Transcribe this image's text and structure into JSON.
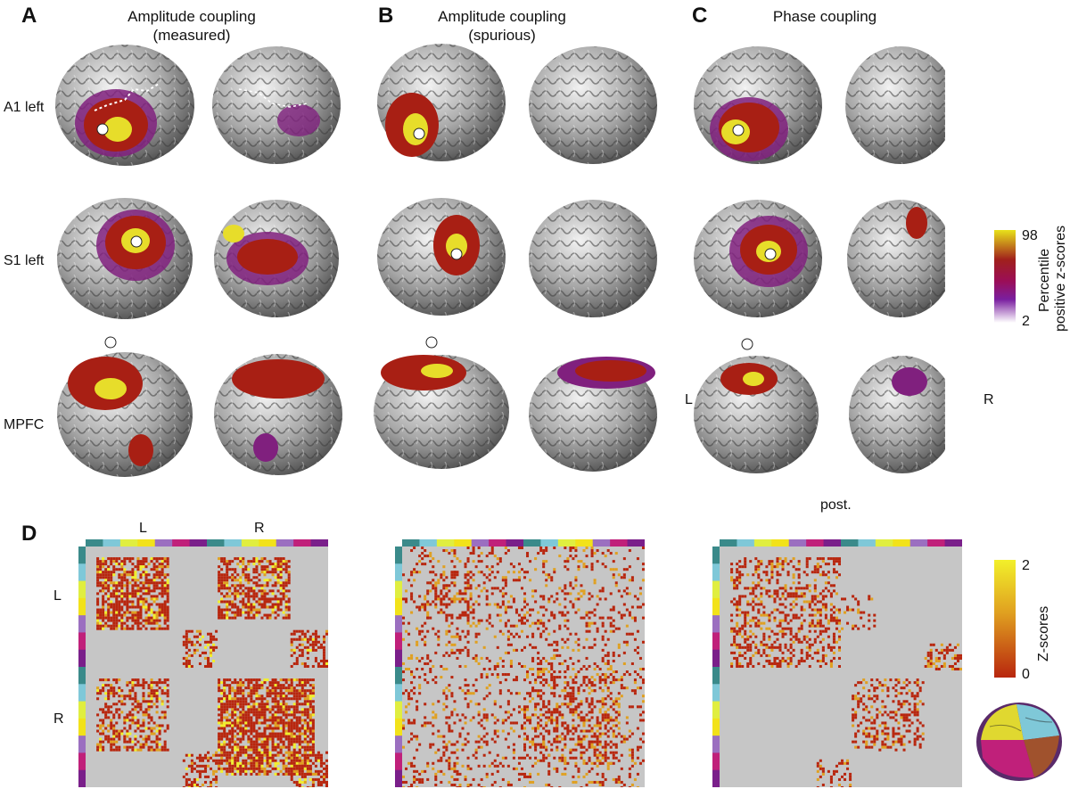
{
  "panels": {
    "A": {
      "letter": "A",
      "title_line1": "Amplitude coupling",
      "title_line2": "(measured)"
    },
    "B": {
      "letter": "B",
      "title_line1": "Amplitude coupling",
      "title_line2": "(spurious)"
    },
    "C": {
      "letter": "C",
      "title_line1": "Phase coupling",
      "title_line2": ""
    },
    "D": {
      "letter": "D"
    }
  },
  "rows": [
    "A1 left",
    "S1 left",
    "MPFC"
  ],
  "orientation": {
    "left": "L",
    "right": "R",
    "posterior": "post."
  },
  "percentile_colorbar": {
    "max_label": "98",
    "min_label": "2",
    "title_line1": "Percentile",
    "title_line2": "positive z-scores",
    "colors": [
      "#ffffff",
      "#7a1fa0",
      "#9b0e57",
      "#a0201c",
      "#e8e21a"
    ]
  },
  "matrix": {
    "left_label": "L",
    "right_label": "R",
    "colorbar_max": "2",
    "colorbar_min": "0",
    "colorbar_title": "Z-scores",
    "colors": [
      "#b8260e",
      "#e0a020",
      "#f2f02a"
    ],
    "region_colors": [
      "#3a8a8a",
      "#7fc8d8",
      "#e0ee40",
      "#f2e21a",
      "#9b6fc0",
      "#c0207a",
      "#7a1f8a"
    ]
  },
  "colors": {
    "brain_gray": "#9a9a9a",
    "matrix_bg": "#c6c6c6",
    "blob_yellow": "#e7dd2a",
    "blob_red": "#a81f14",
    "blob_purple": "#80207e",
    "seed": "#ffffff"
  }
}
